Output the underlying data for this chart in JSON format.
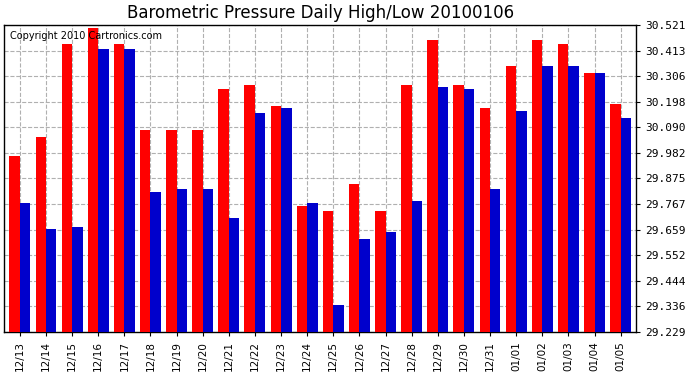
{
  "title": "Barometric Pressure Daily High/Low 20100106",
  "copyright": "Copyright 2010 Cartronics.com",
  "categories": [
    "12/13",
    "12/14",
    "12/15",
    "12/16",
    "12/17",
    "12/18",
    "12/19",
    "12/20",
    "12/21",
    "12/22",
    "12/23",
    "12/24",
    "12/25",
    "12/26",
    "12/27",
    "12/28",
    "12/29",
    "12/30",
    "12/31",
    "01/01",
    "01/02",
    "01/03",
    "01/04",
    "01/05"
  ],
  "highs": [
    29.97,
    30.05,
    30.44,
    30.51,
    30.44,
    30.08,
    30.08,
    30.08,
    30.25,
    30.27,
    30.18,
    29.76,
    29.74,
    29.85,
    29.74,
    30.27,
    30.46,
    30.27,
    30.17,
    30.35,
    30.46,
    30.44,
    30.32,
    30.19
  ],
  "lows": [
    29.77,
    29.66,
    29.67,
    30.42,
    30.42,
    29.82,
    29.83,
    29.83,
    29.71,
    30.15,
    30.17,
    29.77,
    29.34,
    29.62,
    29.65,
    29.78,
    30.26,
    30.25,
    29.83,
    30.16,
    30.35,
    30.35,
    30.32,
    30.13
  ],
  "high_color": "#ff0000",
  "low_color": "#0000cc",
  "background_color": "#ffffff",
  "grid_color": "#b0b0b0",
  "ylim_min": 29.229,
  "ylim_max": 30.521,
  "yticks": [
    29.229,
    29.336,
    29.444,
    29.552,
    29.659,
    29.767,
    29.875,
    29.982,
    30.09,
    30.198,
    30.306,
    30.413,
    30.521
  ],
  "title_fontsize": 12,
  "copyright_fontsize": 7,
  "bar_width": 0.4,
  "figwidth": 6.9,
  "figheight": 3.75,
  "dpi": 100
}
